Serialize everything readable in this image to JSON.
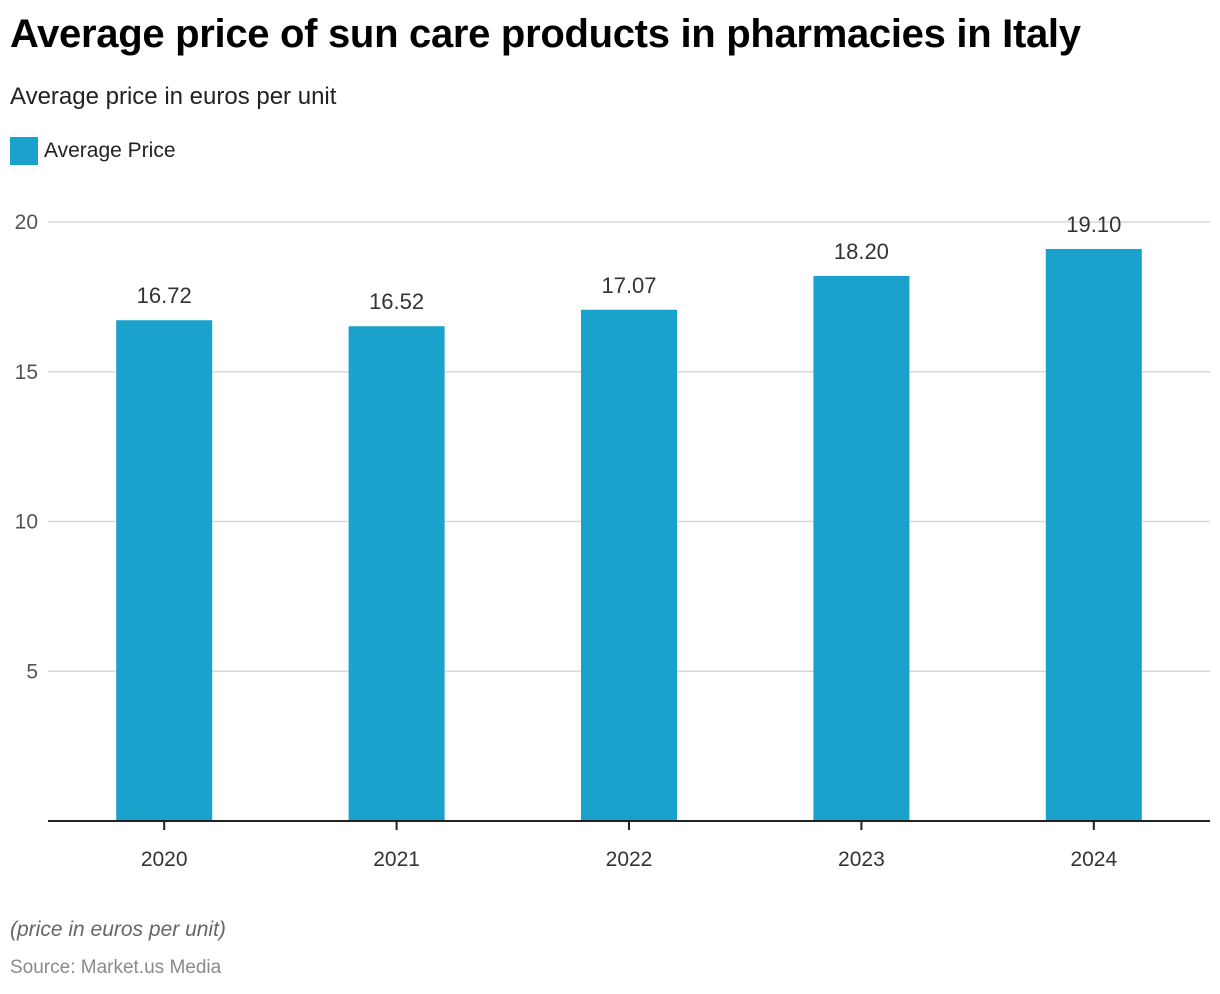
{
  "chart_data": {
    "type": "bar",
    "title": "Average price of sun care products in pharmacies in Italy",
    "subtitle": "Average price in euros per unit",
    "categories": [
      "2020",
      "2021",
      "2022",
      "2023",
      "2024"
    ],
    "series": [
      {
        "name": "Average Price",
        "color": "#1aa1cc",
        "values": [
          16.72,
          16.52,
          17.07,
          18.2,
          19.1
        ]
      }
    ],
    "data_labels": [
      "16.72",
      "16.52",
      "17.07",
      "18.20",
      "19.10"
    ],
    "xlabel": "",
    "ylabel": "",
    "ylim": [
      0,
      20
    ],
    "yticks": [
      5,
      10,
      15,
      20
    ],
    "ytick_labels": [
      "5",
      "10",
      "15",
      "20"
    ],
    "grid": true,
    "legend_position": "top-left"
  },
  "legend": {
    "label": "Average Price",
    "color": "#1aa1cc"
  },
  "footer": {
    "note": "(price in euros per unit)",
    "source": "Source: Market.us Media"
  }
}
